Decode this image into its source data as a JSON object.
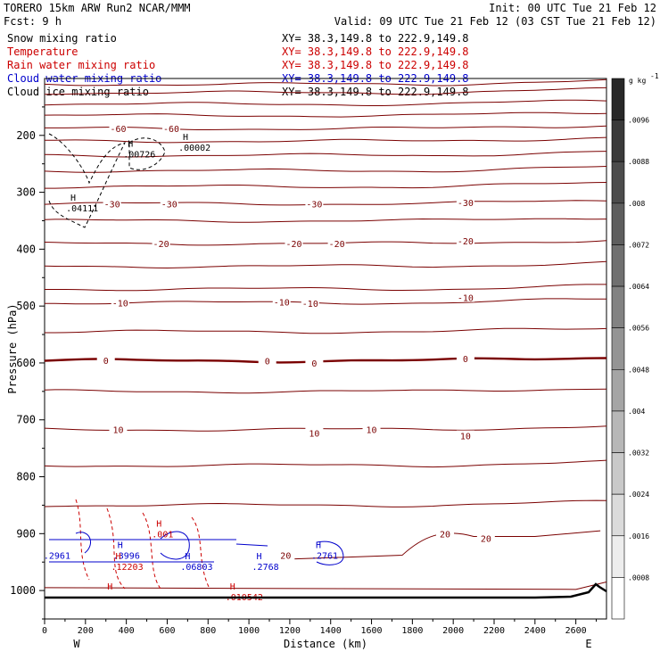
{
  "header": {
    "model": "TORERO  15km ARW   Run2    NCAR/MMM",
    "init": "Init: 00 UTC Tue 21 Feb 12",
    "fcst": "Fcst:     9 h",
    "valid": "Valid: 09 UTC Tue 21 Feb 12 (03 CST Tue 21 Feb 12)"
  },
  "legend": [
    {
      "label": "Snow mixing ratio",
      "xy": "XY=  38.3,149.8 to 222.9,149.8",
      "color": "#000000"
    },
    {
      "label": "Temperature",
      "xy": "XY=  38.3,149.8 to 222.9,149.8",
      "color": "#cc0000"
    },
    {
      "label": "Rain water mixing ratio",
      "xy": "XY=  38.3,149.8 to 222.9,149.8",
      "color": "#cc0000"
    },
    {
      "label": "Cloud water mixing ratio",
      "xy": "XY=  38.3,149.8 to 222.9,149.8",
      "color": "#0000cc"
    },
    {
      "label": "Cloud ice mixing ratio",
      "xy": "XY=  38.3,149.8 to 222.9,149.8",
      "color": "#000000"
    }
  ],
  "chart_data": {
    "type": "contour",
    "xlabel": "Distance (km)",
    "ylabel": "Pressure (hPa)",
    "xlim": [
      0,
      2750
    ],
    "ylim": [
      1050,
      100
    ],
    "x_ticks": [
      0,
      200,
      400,
      600,
      800,
      1000,
      1200,
      1400,
      1600,
      1800,
      2000,
      2200,
      2400,
      2600
    ],
    "y_ticks": [
      200,
      300,
      400,
      500,
      600,
      700,
      800,
      900,
      1000
    ],
    "x_end_labels": {
      "left": "W",
      "right": "E"
    },
    "colorbar": {
      "unit": "g kg",
      "unit_exp": "-1",
      "ticks": [
        ".0096",
        ".0088",
        ".008",
        ".0072",
        ".0064",
        ".0056",
        ".0048",
        ".004",
        ".0032",
        ".0024",
        ".0016",
        ".0008"
      ]
    },
    "temperature_isotherms": [
      {
        "value": -60,
        "labels": [
          {
            "text": "-60",
            "x": 360,
            "p": 188
          },
          {
            "text": "-60",
            "x": 620,
            "p": 188
          }
        ]
      },
      {
        "value": -30,
        "labels": [
          {
            "text": "-30",
            "x": 330,
            "p": 320
          },
          {
            "text": "-30",
            "x": 610,
            "p": 320
          },
          {
            "text": "-30",
            "x": 1320,
            "p": 320
          },
          {
            "text": "-30",
            "x": 2060,
            "p": 318
          }
        ]
      },
      {
        "value": -20,
        "labels": [
          {
            "text": "-20",
            "x": 570,
            "p": 390
          },
          {
            "text": "-20",
            "x": 1220,
            "p": 390
          },
          {
            "text": "-20",
            "x": 1430,
            "p": 390
          },
          {
            "text": "-20",
            "x": 2060,
            "p": 385
          }
        ]
      },
      {
        "value": -10,
        "labels": [
          {
            "text": "-10",
            "x": 370,
            "p": 494
          },
          {
            "text": "-10",
            "x": 1160,
            "p": 493
          },
          {
            "text": "-10",
            "x": 1300,
            "p": 495
          },
          {
            "text": "-10",
            "x": 2060,
            "p": 485
          }
        ]
      },
      {
        "value": 0,
        "labels": [
          {
            "text": "0",
            "x": 300,
            "p": 595
          },
          {
            "text": "0",
            "x": 1090,
            "p": 596
          },
          {
            "text": "0",
            "x": 1320,
            "p": 600
          },
          {
            "text": "0",
            "x": 2060,
            "p": 592
          }
        ]
      },
      {
        "value": 10,
        "labels": [
          {
            "text": "10",
            "x": 360,
            "p": 717
          },
          {
            "text": "10",
            "x": 1320,
            "p": 723
          },
          {
            "text": "10",
            "x": 1600,
            "p": 717
          },
          {
            "text": "10",
            "x": 2060,
            "p": 728
          }
        ]
      },
      {
        "value": 20,
        "labels": [
          {
            "text": "20",
            "x": 1180,
            "p": 938
          },
          {
            "text": "20",
            "x": 1960,
            "p": 900
          },
          {
            "text": "20",
            "x": 2160,
            "p": 908
          }
        ]
      }
    ],
    "extrema_labels": [
      {
        "text": "H",
        "value": ".00726",
        "x": 420,
        "p": 220,
        "color": "#000000"
      },
      {
        "text": "H",
        "value": ".00002",
        "x": 690,
        "p": 208,
        "color": "#000000"
      },
      {
        "text": "H",
        "value": ".04111",
        "x": 140,
        "p": 315,
        "color": "#000000"
      },
      {
        "text": "H",
        "value": ".001",
        "x": 560,
        "p": 888,
        "color": "#cc0000"
      },
      {
        "text": "H",
        "value": ".3996",
        "x": 370,
        "p": 925,
        "color": "#0000cc"
      },
      {
        "text": "H",
        "value": ".12203",
        "x": 360,
        "p": 945,
        "color": "#cc0000"
      },
      {
        "text": "H",
        "value": ".06803",
        "x": 700,
        "p": 945,
        "color": "#0000cc"
      },
      {
        "text": "H",
        "value": ".2768",
        "x": 1050,
        "p": 945,
        "color": "#0000cc"
      },
      {
        "text": "H",
        "value": ".2761",
        "x": 1340,
        "p": 925,
        "color": "#0000cc"
      },
      {
        "text": "H",
        "value": ".010542",
        "x": 920,
        "p": 998,
        "color": "#cc0000"
      },
      {
        "text": "H",
        "value": "",
        "x": 320,
        "p": 998,
        "color": "#cc0000"
      },
      {
        "text": "",
        "value": ".2961",
        "x": 30,
        "p": 925,
        "color": "#0000cc"
      }
    ]
  }
}
